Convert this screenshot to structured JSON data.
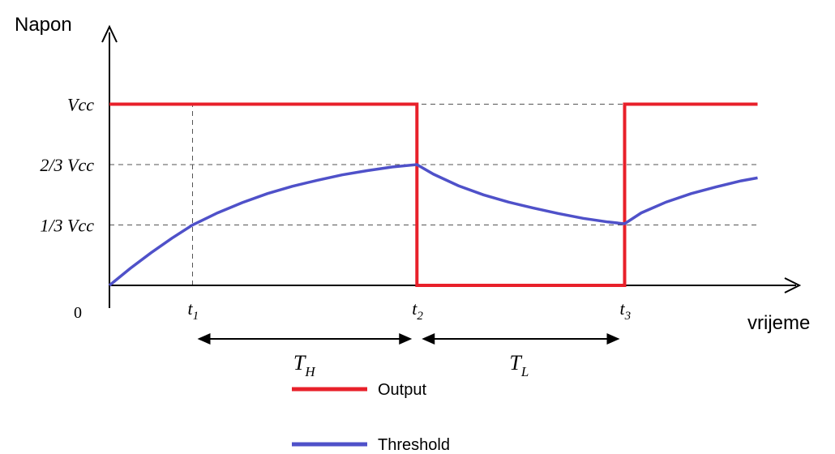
{
  "chart_data": {
    "type": "line",
    "y_axis_label": "Napon",
    "x_axis_label": "vrijeme",
    "origin_label": "0",
    "y_levels": [
      {
        "label": "Vcc",
        "value": 3
      },
      {
        "label": "2/3 Vcc",
        "value": 2
      },
      {
        "label": "1/3 Vcc",
        "value": 1
      }
    ],
    "time_marks": [
      {
        "base": "t",
        "sub": "1",
        "t": 1.0
      },
      {
        "base": "t",
        "sub": "2",
        "t": 3.7
      },
      {
        "base": "t",
        "sub": "3",
        "t": 6.2
      }
    ],
    "x_range": [
      0,
      7.8
    ],
    "y_range": [
      0,
      3
    ],
    "intervals": [
      {
        "base": "T",
        "sub": "H",
        "from": 1.0,
        "to": 3.7
      },
      {
        "base": "T",
        "sub": "L",
        "from": 3.7,
        "to": 6.2
      }
    ],
    "series": [
      {
        "name": "Output",
        "color": "#e8202a",
        "points": [
          [
            0,
            3
          ],
          [
            3.7,
            3
          ],
          [
            3.7,
            0
          ],
          [
            6.2,
            0
          ],
          [
            6.2,
            3
          ],
          [
            7.8,
            3
          ]
        ]
      },
      {
        "name": "Threshold",
        "color": "#4f51c9",
        "points": [
          [
            0,
            0
          ],
          [
            0.25,
            0.28
          ],
          [
            0.5,
            0.54
          ],
          [
            0.75,
            0.78
          ],
          [
            1.0,
            1.0
          ],
          [
            1.3,
            1.2
          ],
          [
            1.6,
            1.37
          ],
          [
            1.9,
            1.52
          ],
          [
            2.2,
            1.64
          ],
          [
            2.5,
            1.74
          ],
          [
            2.8,
            1.83
          ],
          [
            3.1,
            1.9
          ],
          [
            3.4,
            1.96
          ],
          [
            3.7,
            2.0
          ],
          [
            3.9,
            1.84
          ],
          [
            4.2,
            1.65
          ],
          [
            4.5,
            1.5
          ],
          [
            4.8,
            1.38
          ],
          [
            5.1,
            1.28
          ],
          [
            5.4,
            1.19
          ],
          [
            5.7,
            1.11
          ],
          [
            6.0,
            1.05
          ],
          [
            6.2,
            1.02
          ],
          [
            6.4,
            1.2
          ],
          [
            6.7,
            1.38
          ],
          [
            7.0,
            1.52
          ],
          [
            7.3,
            1.63
          ],
          [
            7.6,
            1.73
          ],
          [
            7.8,
            1.78
          ]
        ]
      }
    ],
    "grid": "dashed reference lines at levels and times",
    "legend_position": "bottom-center"
  }
}
